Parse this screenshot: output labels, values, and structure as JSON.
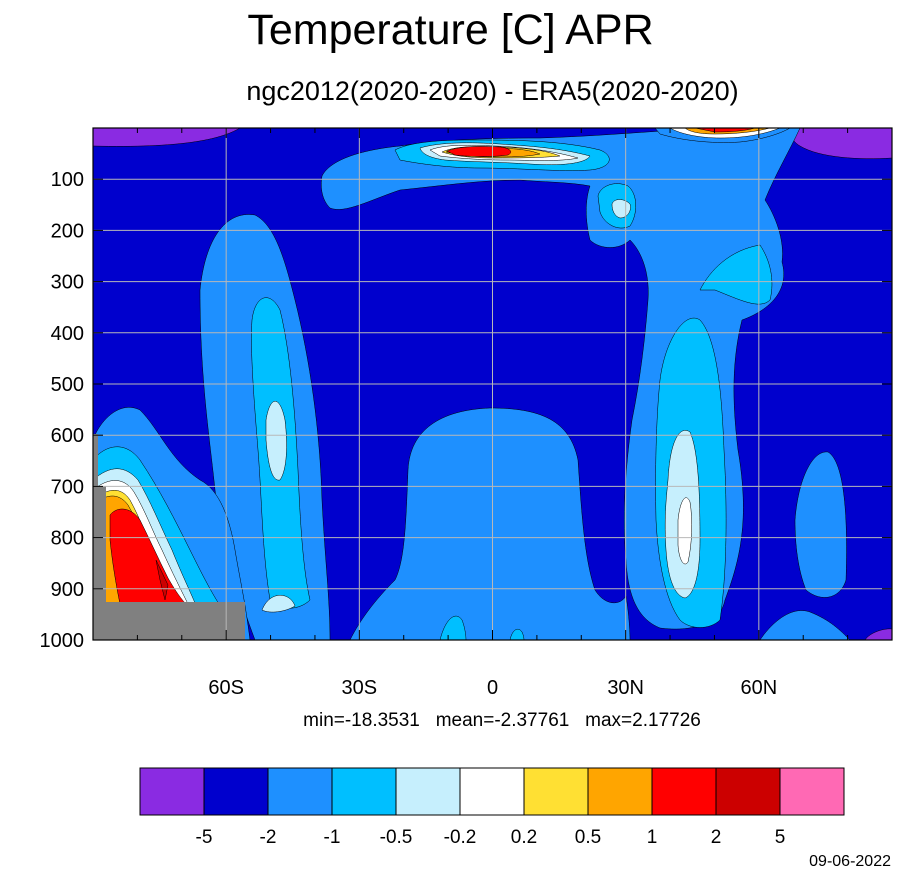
{
  "chart_data": {
    "type": "heatmap",
    "title": "Temperature [C] APR",
    "subtitle": "ngc2012(2020-2020) - ERA5(2020-2020)",
    "x_tick_labels": [
      "60S",
      "30S",
      "0",
      "30N",
      "60N"
    ],
    "x_tick_values": [
      -60,
      -30,
      0,
      30,
      60
    ],
    "xlim": [
      -90,
      90
    ],
    "y_tick_values": [
      100,
      200,
      300,
      400,
      500,
      600,
      700,
      800,
      900,
      1000
    ],
    "y_tick_labels": [
      "100",
      "200",
      "300",
      "400",
      "500",
      "600",
      "700",
      "800",
      "900",
      "1000"
    ],
    "ylim": [
      1000,
      0
    ],
    "grid": true,
    "stats_text": "min=-18.3531   mean=-2.37761   max=2.17726",
    "colorbar": {
      "placement": "bottom",
      "boundaries": [
        "-5",
        "-2",
        "-1",
        "-0.5",
        "-0.2",
        "0.2",
        "0.5",
        "1",
        "2",
        "5"
      ],
      "colors": [
        "#8a2be2",
        "#0000cd",
        "#1e90ff",
        "#00bfff",
        "#c6effd",
        "#ffffff",
        "#ffe033",
        "#ffa500",
        "#ff0000",
        "#cc0000",
        "#ff69b4"
      ]
    },
    "missing_color": "#808080"
  },
  "date_label": "09-06-2022"
}
